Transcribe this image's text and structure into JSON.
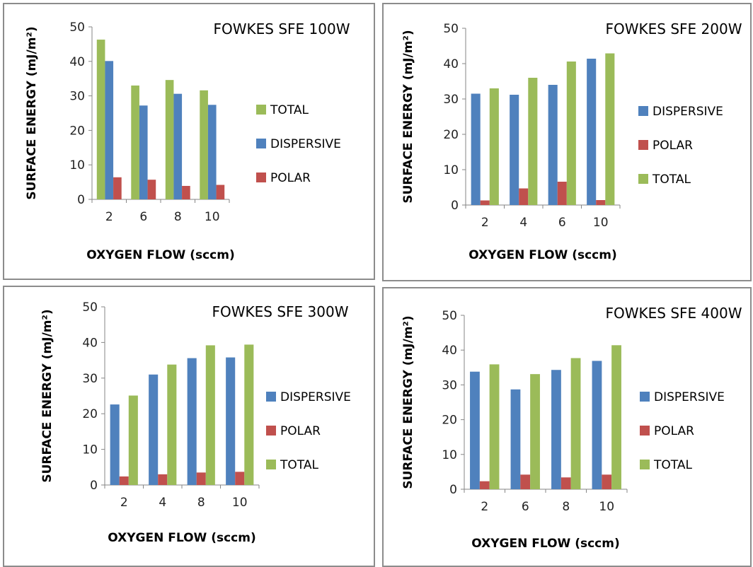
{
  "chart_data": [
    {
      "type": "bar",
      "title": "FOWKES SFE   100W",
      "xlabel": "OXYGEN FLOW (sccm)",
      "ylabel": "SURFACE ENERGY (mJ/m²)",
      "ylim": [
        0,
        50
      ],
      "yticks": [
        "0",
        "10",
        "20",
        "30",
        "40",
        "50"
      ],
      "grid": false,
      "legend_position": "right",
      "categories": [
        "2",
        "6",
        "8",
        "10"
      ],
      "series": [
        {
          "name": "TOTAL",
          "color": "#9bbb59",
          "values": [
            46.3,
            33.0,
            34.6,
            31.6
          ]
        },
        {
          "name": "DISPERSIVE",
          "color": "#4f81bd",
          "values": [
            40.1,
            27.2,
            30.6,
            27.4
          ]
        },
        {
          "name": "POLAR",
          "color": "#c0504d",
          "values": [
            6.4,
            5.7,
            3.9,
            4.2
          ]
        }
      ]
    },
    {
      "type": "bar",
      "title": "FOWKES SFE  200W",
      "xlabel": "OXYGEN FLOW (sccm)",
      "ylabel": "SURFACE ENERGY (mJ/m²)",
      "ylim": [
        0,
        50
      ],
      "yticks": [
        "0",
        "10",
        "20",
        "30",
        "40",
        "50"
      ],
      "grid": false,
      "legend_position": "right",
      "categories": [
        "2",
        "4",
        "6",
        "10"
      ],
      "series": [
        {
          "name": "DISPERSIVE",
          "color": "#4f81bd",
          "values": [
            31.5,
            31.2,
            34.0,
            41.4
          ]
        },
        {
          "name": "POLAR",
          "color": "#c0504d",
          "values": [
            1.3,
            4.7,
            6.6,
            1.4
          ]
        },
        {
          "name": "TOTAL",
          "color": "#9bbb59",
          "values": [
            33.0,
            36.0,
            40.6,
            42.9
          ]
        }
      ]
    },
    {
      "type": "bar",
      "title": "FOWKES SFE   300W",
      "xlabel": "OXYGEN FLOW (sccm)",
      "ylabel": "SURFACE ENERGY (mJ/m²)",
      "ylim": [
        0,
        50
      ],
      "yticks": [
        "0",
        "10",
        "20",
        "30",
        "40",
        "50"
      ],
      "grid": false,
      "legend_position": "right",
      "categories": [
        "2",
        "4",
        "8",
        "10"
      ],
      "series": [
        {
          "name": "DISPERSIVE",
          "color": "#4f81bd",
          "values": [
            22.6,
            31.0,
            35.6,
            35.8
          ]
        },
        {
          "name": "POLAR",
          "color": "#c0504d",
          "values": [
            2.4,
            3.0,
            3.5,
            3.7
          ]
        },
        {
          "name": "TOTAL",
          "color": "#9bbb59",
          "values": [
            25.1,
            33.8,
            39.2,
            39.4
          ]
        }
      ]
    },
    {
      "type": "bar",
      "title": "FOWKES SFE   400W",
      "xlabel": "OXYGEN FLOW (sccm)",
      "ylabel": "SURFACE ENERGY (mJ/m²)",
      "ylim": [
        0,
        50
      ],
      "yticks": [
        "0",
        "10",
        "20",
        "30",
        "40",
        "50"
      ],
      "grid": false,
      "legend_position": "right",
      "categories": [
        "2",
        "6",
        "8",
        "10"
      ],
      "series": [
        {
          "name": "DISPERSIVE",
          "color": "#4f81bd",
          "values": [
            33.8,
            28.7,
            34.3,
            36.9
          ]
        },
        {
          "name": "POLAR",
          "color": "#c0504d",
          "values": [
            2.3,
            4.2,
            3.4,
            4.2
          ]
        },
        {
          "name": "TOTAL",
          "color": "#9bbb59",
          "values": [
            35.9,
            33.1,
            37.7,
            41.4
          ]
        }
      ]
    }
  ]
}
